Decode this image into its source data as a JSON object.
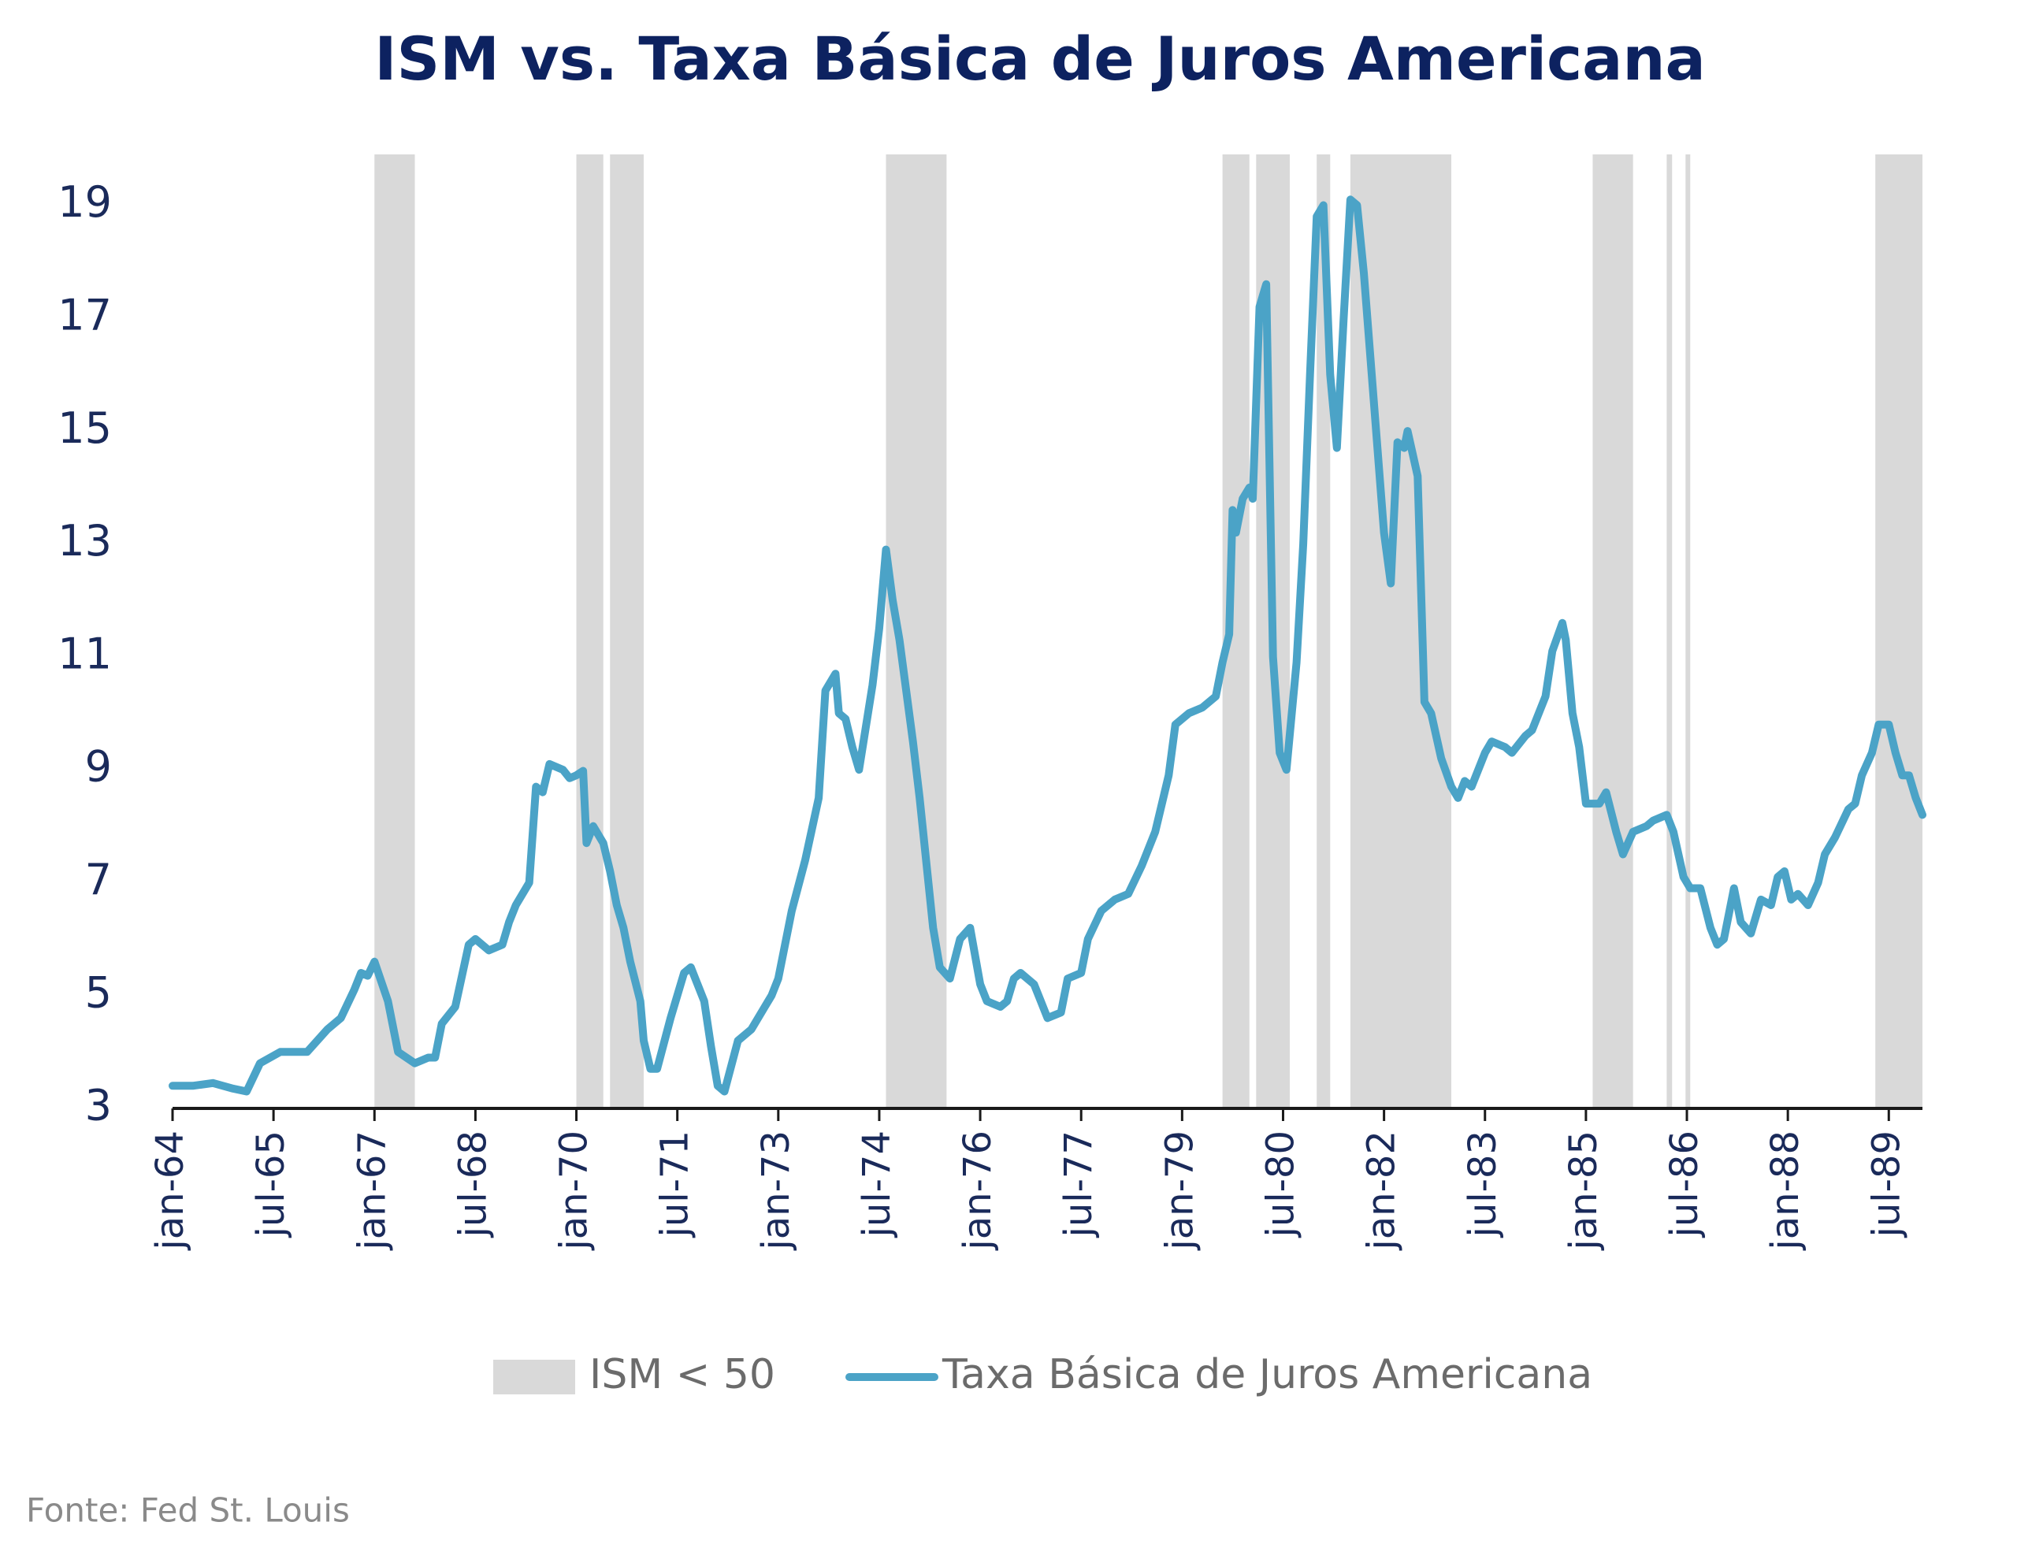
{
  "chart_data": {
    "type": "line",
    "title": "ISM vs. Taxa Básica de Juros Americana",
    "source": "Fonte: Fed St. Louis",
    "xlim": [
      1964,
      1990
    ],
    "ylim": [
      3,
      19.9
    ],
    "yticks": [
      3,
      5,
      7,
      9,
      11,
      13,
      15,
      17,
      19
    ],
    "xticks": [
      {
        "value": 1964,
        "label": "jan-64"
      },
      {
        "value": 1965.5,
        "label": "jul-65"
      },
      {
        "value": 1967,
        "label": "jan-67"
      },
      {
        "value": 1968.5,
        "label": "jul-68"
      },
      {
        "value": 1970,
        "label": "jan-70"
      },
      {
        "value": 1971.5,
        "label": "jul-71"
      },
      {
        "value": 1973,
        "label": "jan-73"
      },
      {
        "value": 1974.5,
        "label": "jul-74"
      },
      {
        "value": 1976,
        "label": "jan-76"
      },
      {
        "value": 1977.5,
        "label": "jul-77"
      },
      {
        "value": 1979,
        "label": "jan-79"
      },
      {
        "value": 1980.5,
        "label": "jul-80"
      },
      {
        "value": 1982,
        "label": "jan-82"
      },
      {
        "value": 1983.5,
        "label": "jul-83"
      },
      {
        "value": 1985,
        "label": "jan-85"
      },
      {
        "value": 1986.5,
        "label": "jul-86"
      },
      {
        "value": 1988,
        "label": "jan-88"
      },
      {
        "value": 1989.5,
        "label": "jul-89"
      }
    ],
    "bands": {
      "name": "ISM < 50",
      "color": "#d9d9d9",
      "ranges": [
        [
          1967.0,
          1967.6
        ],
        [
          1970.0,
          1970.4
        ],
        [
          1970.5,
          1971.0
        ],
        [
          1974.6,
          1975.5
        ],
        [
          1979.6,
          1980.0
        ],
        [
          1980.1,
          1980.6
        ],
        [
          1981.0,
          1981.2
        ],
        [
          1981.5,
          1983.0
        ],
        [
          1985.1,
          1985.7
        ],
        [
          1986.2,
          1986.28
        ],
        [
          1986.48,
          1986.55
        ],
        [
          1989.3,
          1990.0
        ]
      ]
    },
    "x": [
      1964.0,
      1964.3,
      1964.6,
      1964.9,
      1965.1,
      1965.3,
      1965.6,
      1965.9,
      1966.0,
      1966.3,
      1966.5,
      1966.7,
      1966.8,
      1966.9,
      1967.0,
      1967.2,
      1967.35,
      1967.6,
      1967.8,
      1967.9,
      1968.0,
      1968.2,
      1968.4,
      1968.5,
      1968.7,
      1968.9,
      1969.0,
      1969.1,
      1969.3,
      1969.4,
      1969.5,
      1969.6,
      1969.8,
      1969.9,
      1970.0,
      1970.1,
      1970.15,
      1970.25,
      1970.4,
      1970.5,
      1970.6,
      1970.7,
      1970.8,
      1970.95,
      1971.0,
      1971.1,
      1971.2,
      1971.4,
      1971.6,
      1971.7,
      1971.9,
      1972.0,
      1972.1,
      1972.2,
      1972.4,
      1972.6,
      1972.8,
      1972.9,
      1973.0,
      1973.2,
      1973.4,
      1973.6,
      1973.7,
      1973.85,
      1973.9,
      1974.0,
      1974.1,
      1974.2,
      1974.4,
      1974.5,
      1974.6,
      1974.7,
      1974.8,
      1975.0,
      1975.1,
      1975.3,
      1975.4,
      1975.55,
      1975.7,
      1975.85,
      1976.0,
      1976.1,
      1976.3,
      1976.4,
      1976.5,
      1976.6,
      1976.8,
      1976.9,
      1977.0,
      1977.2,
      1977.3,
      1977.5,
      1977.6,
      1977.8,
      1978.0,
      1978.2,
      1978.4,
      1978.6,
      1978.8,
      1978.9,
      1979.1,
      1979.3,
      1979.5,
      1979.6,
      1979.7,
      1979.75,
      1979.8,
      1979.9,
      1980.0,
      1980.05,
      1980.15,
      1980.25,
      1980.35,
      1980.45,
      1980.55,
      1980.7,
      1980.8,
      1980.9,
      1981.0,
      1981.1,
      1981.2,
      1981.3,
      1981.4,
      1981.5,
      1981.6,
      1981.7,
      1981.85,
      1982.0,
      1982.1,
      1982.2,
      1982.3,
      1982.35,
      1982.5,
      1982.6,
      1982.7,
      1982.85,
      1983.0,
      1983.1,
      1983.2,
      1983.3,
      1983.5,
      1983.6,
      1983.8,
      1983.9,
      1984.1,
      1984.2,
      1984.4,
      1984.5,
      1984.65,
      1984.7,
      1984.8,
      1984.9,
      1985.0,
      1985.2,
      1985.3,
      1985.45,
      1985.55,
      1985.7,
      1985.9,
      1986.0,
      1986.2,
      1986.3,
      1986.45,
      1986.55,
      1986.7,
      1986.85,
      1986.95,
      1987.05,
      1987.2,
      1987.3,
      1987.45,
      1987.6,
      1987.75,
      1987.85,
      1987.95,
      1988.05,
      1988.15,
      1988.3,
      1988.45,
      1988.55,
      1988.7,
      1988.9,
      1989.0,
      1989.1,
      1989.25,
      1989.35,
      1989.5,
      1989.6,
      1989.7,
      1989.8,
      1989.9,
      1990.0
    ],
    "series": [
      {
        "name": "Taxa Básica de Juros Americana",
        "color": "#4ba3c7",
        "values": [
          3.4,
          3.4,
          3.45,
          3.35,
          3.3,
          3.8,
          4.0,
          4.0,
          4.0,
          4.4,
          4.6,
          5.1,
          5.4,
          5.35,
          5.6,
          4.9,
          4.0,
          3.8,
          3.9,
          3.9,
          4.5,
          4.8,
          5.9,
          6.0,
          5.8,
          5.9,
          6.3,
          6.6,
          7.0,
          8.7,
          8.6,
          9.1,
          9.0,
          8.85,
          8.9,
          8.98,
          7.7,
          8.0,
          7.7,
          7.2,
          6.6,
          6.2,
          5.6,
          4.9,
          4.2,
          3.7,
          3.7,
          4.6,
          5.4,
          5.5,
          4.9,
          4.1,
          3.4,
          3.3,
          4.2,
          4.4,
          4.8,
          5.0,
          5.3,
          6.5,
          7.4,
          8.5,
          10.4,
          10.7,
          10.0,
          9.9,
          9.4,
          9.0,
          10.5,
          11.5,
          12.9,
          12.0,
          11.3,
          9.5,
          8.5,
          6.2,
          5.5,
          5.3,
          6.0,
          6.2,
          5.2,
          4.9,
          4.8,
          4.9,
          5.3,
          5.4,
          5.2,
          4.9,
          4.6,
          4.7,
          5.3,
          5.4,
          6.0,
          6.5,
          6.7,
          6.8,
          7.3,
          7.9,
          8.9,
          9.8,
          10.0,
          10.1,
          10.3,
          10.9,
          11.4,
          13.6,
          13.2,
          13.8,
          14.0,
          13.8,
          17.2,
          17.6,
          11.0,
          9.3,
          9.0,
          10.9,
          13.0,
          16.0,
          18.8,
          19.0,
          16.0,
          14.7,
          17.0,
          19.1,
          19.0,
          17.8,
          15.5,
          13.2,
          12.3,
          14.8,
          14.7,
          15.0,
          14.2,
          10.2,
          10.0,
          9.2,
          8.7,
          8.5,
          8.8,
          8.7,
          9.3,
          9.5,
          9.4,
          9.3,
          9.6,
          9.7,
          10.3,
          11.1,
          11.6,
          11.3,
          10.0,
          9.4,
          8.4,
          8.4,
          8.6,
          7.9,
          7.5,
          7.9,
          8.0,
          8.1,
          8.2,
          7.9,
          7.1,
          6.9,
          6.9,
          6.2,
          5.9,
          6.0,
          6.9,
          6.3,
          6.1,
          6.7,
          6.6,
          7.1,
          7.2,
          6.7,
          6.8,
          6.6,
          7.0,
          7.5,
          7.8,
          8.3,
          8.4,
          8.9,
          9.3,
          9.8,
          9.8,
          9.3,
          8.9,
          8.9,
          8.5,
          8.2
        ]
      }
    ]
  }
}
